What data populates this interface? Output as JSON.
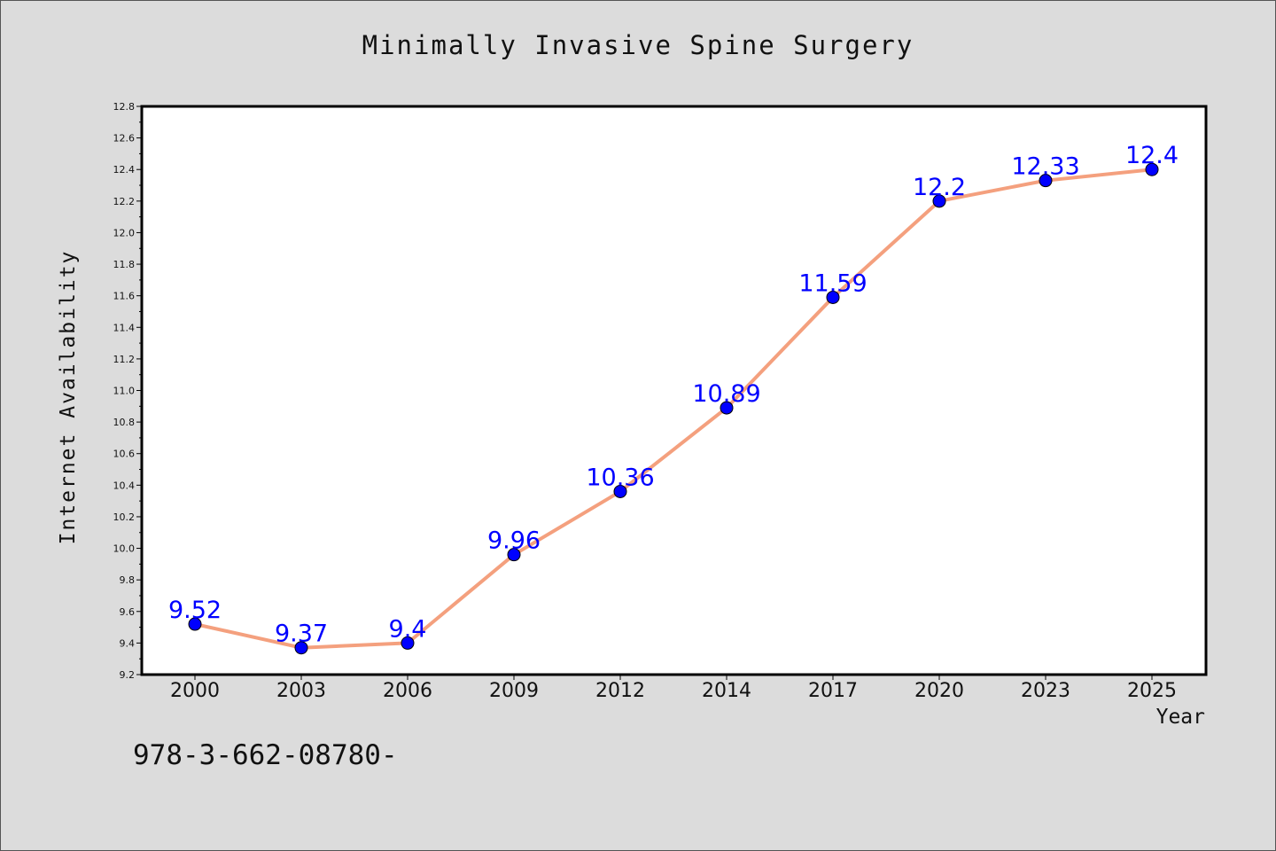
{
  "chart_data": {
    "type": "line",
    "title": "Minimally Invasive Spine Surgery",
    "xlabel": "Year",
    "ylabel": "Internet Availability",
    "categories": [
      "2000",
      "2003",
      "2006",
      "2009",
      "2012",
      "2014",
      "2017",
      "2020",
      "2023",
      "2025"
    ],
    "series": [
      {
        "values": [
          9.52,
          9.37,
          9.4,
          9.96,
          10.36,
          10.89,
          11.59,
          12.2,
          12.33,
          12.4
        ],
        "labels": [
          "9.52",
          "9.37",
          "9.4",
          "9.96",
          "10.36",
          "10.89",
          "11.59",
          "12.2",
          "12.33",
          "12.4"
        ],
        "line_color": "#f4a07e",
        "marker_color": "#0000ff",
        "label_color": "#0000ff"
      }
    ],
    "ylim": [
      9.2,
      12.8
    ],
    "yticks": [
      "9.2",
      "9.4",
      "9.6",
      "9.8",
      "10.0",
      "10.2",
      "10.4",
      "10.6",
      "10.8",
      "11.0",
      "11.2",
      "11.4",
      "11.6",
      "11.8",
      "12.0",
      "12.2",
      "12.4",
      "12.6",
      "12.8"
    ],
    "grid": false,
    "legend": "none"
  },
  "footer_text": "978-3-662-08780-"
}
